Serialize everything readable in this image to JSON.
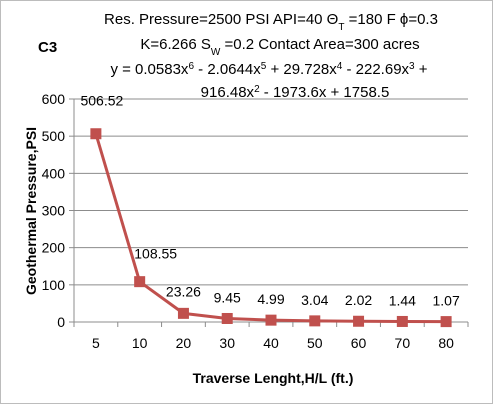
{
  "chart_data": {
    "type": "line",
    "panel_label": "C3",
    "header_lines": [
      [
        "Res. Pressure=2500 PSI API=40 Θ",
        {
          "sub": "T"
        },
        " =180 F ϕ=0.3"
      ],
      [
        "K=6.266 S",
        {
          "sub": "W"
        },
        " =0.2 Contact Area=300 acres"
      ],
      [
        "y = 0.0583x",
        {
          "sup": "6"
        },
        " - 2.0644x",
        {
          "sup": "5"
        },
        " + 29.728x",
        {
          "sup": "4"
        },
        " - 222.69x",
        {
          "sup": "3"
        },
        " +"
      ],
      [
        "916.48x",
        {
          "sup": "2"
        },
        " - 1973.6x + 1758.5"
      ]
    ],
    "xlabel": "Traverse Lenght,H/L (ft.)",
    "ylabel": "Geothermal Pressure,PSI",
    "categories": [
      "5",
      "10",
      "20",
      "30",
      "40",
      "50",
      "60",
      "70",
      "80"
    ],
    "values": [
      506.52,
      108.55,
      23.26,
      9.45,
      4.99,
      3.04,
      2.02,
      1.44,
      1.07
    ],
    "data_labels": [
      "506.52",
      "108.55",
      "23.26",
      "9.45",
      "4.99",
      "3.04",
      "2.02",
      "1.44",
      "1.07"
    ],
    "yticks": [
      0,
      100,
      200,
      300,
      400,
      500,
      600
    ],
    "ylim": [
      0,
      600
    ],
    "grid": "horizontal",
    "legend": "none",
    "series_color": "#c0504d",
    "grid_color": "#8c8c8c"
  }
}
